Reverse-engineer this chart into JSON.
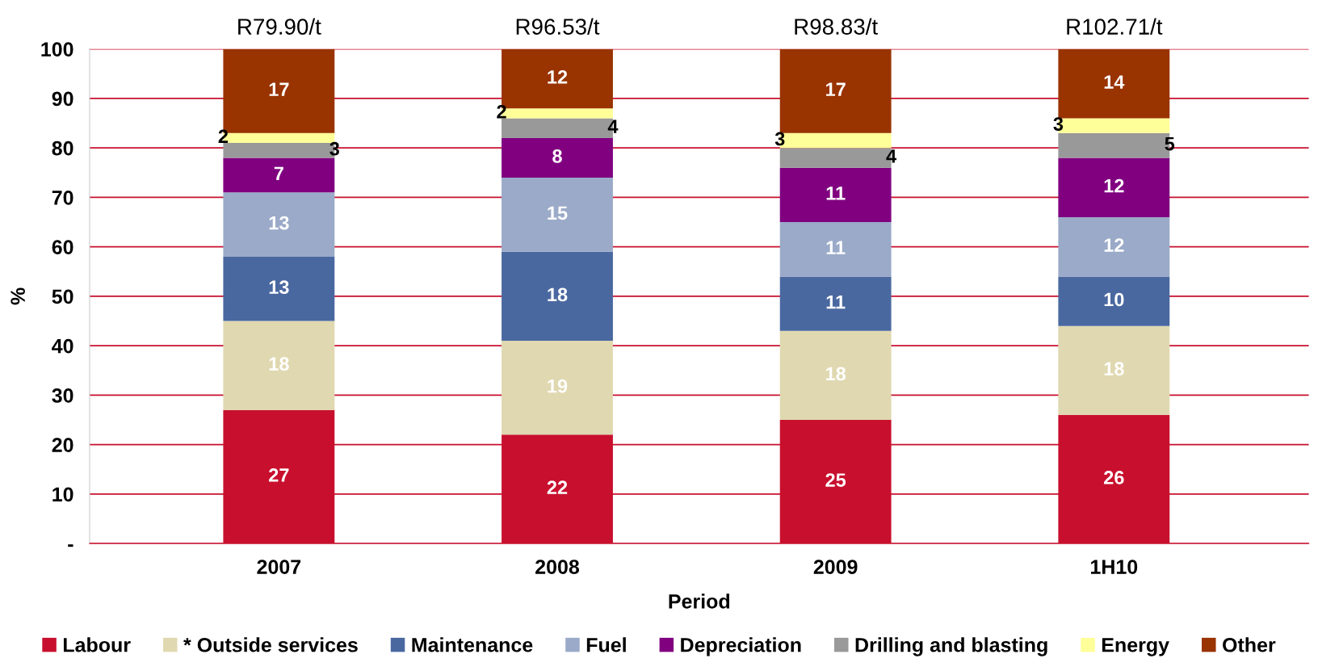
{
  "chart_data": {
    "type": "bar",
    "stacked": true,
    "categories": [
      "2007",
      "2008",
      "2009",
      "1H10"
    ],
    "series": [
      {
        "name": "Labour",
        "color": "#c8102e",
        "values": [
          27,
          22,
          25,
          26
        ]
      },
      {
        "name": "* Outside services",
        "color": "#e0d8b0",
        "values": [
          18,
          19,
          18,
          18
        ]
      },
      {
        "name": "Maintenance",
        "color": "#4a68a0",
        "values": [
          13,
          18,
          11,
          10
        ]
      },
      {
        "name": "Fuel",
        "color": "#9aaac8",
        "values": [
          13,
          15,
          11,
          12
        ]
      },
      {
        "name": "Depreciation",
        "color": "#800080",
        "values": [
          7,
          8,
          11,
          12
        ]
      },
      {
        "name": "Drilling and blasting",
        "color": "#999999",
        "values": [
          3,
          4,
          4,
          5
        ]
      },
      {
        "name": "Energy",
        "color": "#ffff99",
        "values": [
          2,
          2,
          3,
          3
        ]
      },
      {
        "name": "Other",
        "color": "#993300",
        "values": [
          17,
          12,
          17,
          14
        ]
      }
    ],
    "totals": [
      "R79.90/t",
      "R96.53/t",
      "R98.83/t",
      "R102.71/t"
    ],
    "data_labels": true,
    "xlabel": "Period",
    "ylabel": "%",
    "ylim": [
      0,
      100
    ],
    "yticks": [
      {
        "value": 0,
        "label": "-"
      },
      10,
      20,
      30,
      40,
      50,
      60,
      70,
      80,
      90,
      100
    ],
    "grid": "y",
    "legend": "bottom"
  }
}
